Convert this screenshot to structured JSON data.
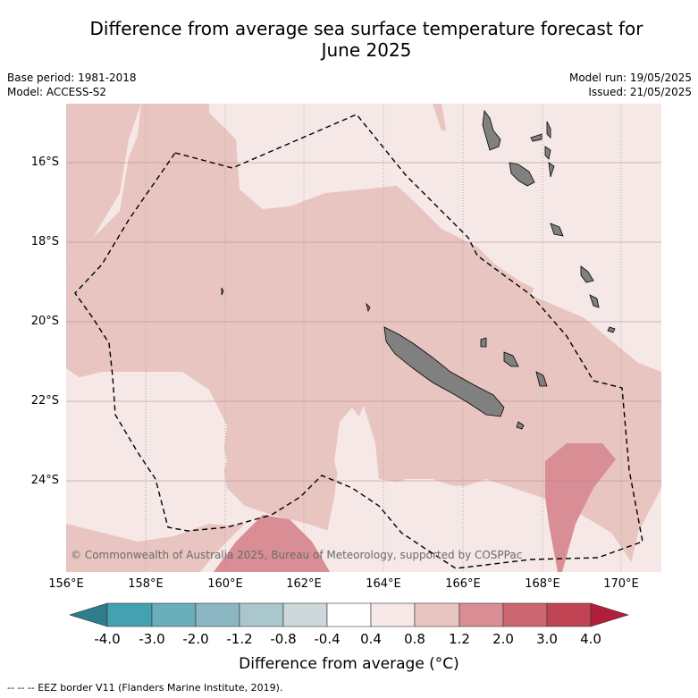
{
  "title_line1": "Difference from average sea surface temperature forecast for",
  "title_line2": "June 2025",
  "meta": {
    "base_period": "Base period: 1981-2018",
    "model": "Model: ACCESS-S2",
    "model_run": "Model run: 19/05/2025",
    "issued": "Issued: 21/05/2025"
  },
  "lat_labels": [
    "16°S",
    "18°S",
    "20°S",
    "22°S",
    "24°S"
  ],
  "lon_labels": [
    "156°E",
    "158°E",
    "160°E",
    "162°E",
    "164°E",
    "166°E",
    "168°E",
    "170°E"
  ],
  "copyright": "© Commonwealth of Australia 2025, Bureau of Meteorology, supported by COSPPac",
  "colorbar": {
    "ticks": [
      "-4.0",
      "-3.0",
      "-2.0",
      "-1.2",
      "-0.8",
      "-0.4",
      "0.4",
      "0.8",
      "1.2",
      "2.0",
      "3.0",
      "4.0"
    ],
    "colors": [
      "#2e7d8c",
      "#43a1b2",
      "#6aaebc",
      "#8cb7c2",
      "#a9c7cc",
      "#ccd8d9",
      "#ffffff",
      "#f5e8e6",
      "#e8c5c1",
      "#d98e95",
      "#cc6670",
      "#c04453",
      "#b01e3c"
    ],
    "title": "Difference from average (°C)"
  },
  "footnote": "--  --  -- EEZ border V11 (Flanders Marine Institute, 2019).",
  "colors": {
    "anomaly_0_4_0_8": "#f5e8e6",
    "anomaly_0_8_1_2": "#e8c5c1",
    "anomaly_1_2_2_0": "#d98e95",
    "land": "#808080",
    "eez": "#000000"
  }
}
